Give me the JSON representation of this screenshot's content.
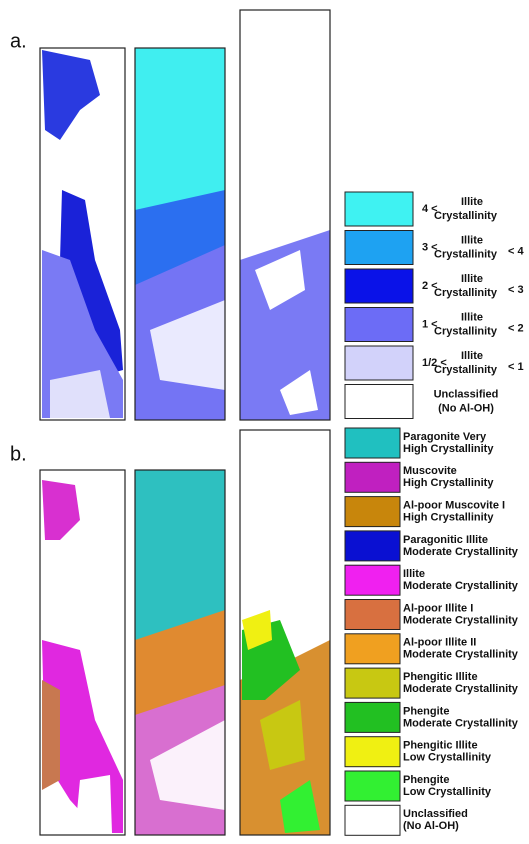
{
  "panel_a": {
    "label": "a.",
    "legend": [
      {
        "prefix": "4 <",
        "line1": "Illite",
        "line2": "Crystallinity",
        "color": "#3ff2f2"
      },
      {
        "prefix": "3 <",
        "line1": "Illite",
        "line2": "Crystallinity",
        "suffix": "< 4",
        "color": "#1ea2f2"
      },
      {
        "prefix": "2 <",
        "line1": "Illite",
        "line2": "Crystallinity",
        "suffix": "< 3",
        "color": "#0a12e8"
      },
      {
        "prefix": "1 <",
        "line1": "Illite",
        "line2": "Crystallinity",
        "suffix": "< 2",
        "color": "#6c6cf6"
      },
      {
        "prefix": "1/2 <",
        "line1": "Illite",
        "line2": "Crystallinity",
        "suffix": "< 1",
        "color": "#d2d2fa"
      },
      {
        "line1": "Unclassified",
        "line2": "(No Al-OH)",
        "color": "#ffffff"
      }
    ]
  },
  "panel_b": {
    "label": "b.",
    "legend": [
      {
        "lines": [
          "Paragonite Very",
          "High Crystallinity"
        ],
        "color": "#20c0c0"
      },
      {
        "lines": [
          "Muscovite",
          "High Crystallinity"
        ],
        "color": "#c020c0"
      },
      {
        "lines": [
          "Al-poor Muscovite I",
          "High Crystallinity"
        ],
        "color": "#c8860c"
      },
      {
        "lines": [
          "Paragonitic Illite",
          "Moderate Crystallinity"
        ],
        "color": "#0a10d2"
      },
      {
        "lines": [
          "Illite",
          "Moderate Crystallinity"
        ],
        "color": "#f020f0"
      },
      {
        "lines": [
          "Al-poor Illite I",
          "Moderate Crystallinity"
        ],
        "color": "#d87040"
      },
      {
        "lines": [
          "Al-poor Illite II",
          "Moderate Crystallinity"
        ],
        "color": "#f0a020"
      },
      {
        "lines": [
          "Phengitic Illite",
          "Moderate Crystallinity"
        ],
        "color": "#c8c812"
      },
      {
        "lines": [
          "Phengite",
          "Moderate Crystallinity"
        ],
        "color": "#22c022"
      },
      {
        "lines": [
          "Phengitic Illite",
          "Low Crystallinity"
        ],
        "color": "#f0f012"
      },
      {
        "lines": [
          "Phengite",
          "Low Crystallinity"
        ],
        "color": "#32f032"
      },
      {
        "lines": [
          "Unclassified",
          "(No Al-OH)"
        ],
        "color": "#ffffff"
      }
    ]
  }
}
